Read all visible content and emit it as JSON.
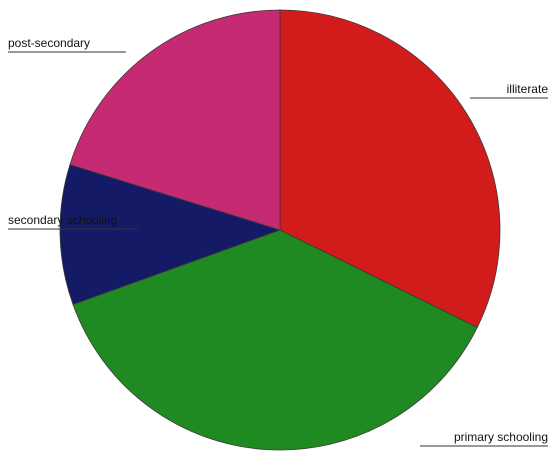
{
  "chart_data": {
    "type": "pie",
    "title": "",
    "slices": [
      {
        "label": "illiterate",
        "value": 32.3,
        "color": "#d21c1c"
      },
      {
        "label": "primary schooling",
        "value": 37.2,
        "color": "#1f8a22"
      },
      {
        "label": "secondary schooling",
        "value": 10.3,
        "color": "#151a66"
      },
      {
        "label": "post-secondary",
        "value": 20.2,
        "color": "#c62a73"
      }
    ],
    "start_angle_deg": 0,
    "direction": "clockwise",
    "legend": "none"
  }
}
